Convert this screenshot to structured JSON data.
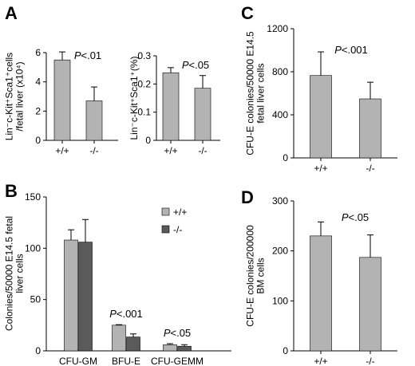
{
  "colors": {
    "wt": "#b3b3b3",
    "ko": "#5a5a5a",
    "axis": "#000000"
  },
  "panels": {
    "A": {
      "letter": "A"
    },
    "B": {
      "letter": "B"
    },
    "C": {
      "letter": "C"
    },
    "D": {
      "letter": "D"
    }
  },
  "chart_data": [
    {
      "id": "A1",
      "type": "bar",
      "categories": [
        "+/+",
        "-/-"
      ],
      "values": [
        5.5,
        2.7
      ],
      "errors": [
        0.55,
        0.95
      ],
      "ylim": [
        0,
        6
      ],
      "yticks": [
        "0",
        "2",
        "4",
        "6"
      ],
      "ylabel": [
        "Lin⁻c-Kit⁺Sca1⁺cells",
        "/fetal liver (x10⁴)"
      ],
      "annotation": {
        "prefix": "P",
        "text": "<.01"
      }
    },
    {
      "id": "A2",
      "type": "bar",
      "categories": [
        "+/+",
        "-/-"
      ],
      "values": [
        0.24,
        0.185
      ],
      "errors": [
        0.018,
        0.045
      ],
      "ylim": [
        0,
        0.3
      ],
      "yticks": [
        "0",
        "0.1",
        "0.2",
        "0.3"
      ],
      "ylabel": [
        "Lin⁻c-Kit⁺Sca1⁺(%)"
      ],
      "annotation": {
        "prefix": "P",
        "text": "<.05"
      }
    },
    {
      "id": "B",
      "type": "bar",
      "categories": [
        "CFU-GM",
        "BFU-E",
        "CFU-GEMM"
      ],
      "series": [
        {
          "name": "+/+",
          "values": [
            108,
            25,
            6
          ],
          "errors": [
            10,
            0.5,
            1
          ]
        },
        {
          "name": "-/-",
          "values": [
            106,
            13.5,
            4.5
          ],
          "errors": [
            22,
            3,
            1.5
          ]
        }
      ],
      "ylim": [
        0,
        150
      ],
      "yticks": [
        "0",
        "50",
        "100",
        "150"
      ],
      "ylabel": [
        "Colonies/50000 E14.5 fetal",
        "liver cells"
      ],
      "annotations": [
        {
          "category": "BFU-E",
          "prefix": "P",
          "text": "<.001"
        },
        {
          "category": "CFU-GEMM",
          "prefix": "P",
          "text": "<.05"
        }
      ],
      "legend_position": "top-right"
    },
    {
      "id": "C",
      "type": "bar",
      "categories": [
        "+/+",
        "-/-"
      ],
      "values": [
        765,
        548
      ],
      "errors": [
        220,
        155
      ],
      "ylim": [
        0,
        1200
      ],
      "yticks": [
        "0",
        "400",
        "800",
        "1200"
      ],
      "ylabel": [
        "CFU-E colonies/50000 E14.5",
        "fetal liver cells"
      ],
      "annotation": {
        "prefix": "P",
        "text": "<.001"
      }
    },
    {
      "id": "D",
      "type": "bar",
      "categories": [
        "+/+",
        "-/-"
      ],
      "values": [
        230,
        187
      ],
      "errors": [
        28,
        45
      ],
      "ylim": [
        0,
        300
      ],
      "yticks": [
        "0",
        "100",
        "200",
        "300"
      ],
      "ylabel": [
        "CFU-E colonies/200000",
        "BM cells"
      ],
      "annotation": {
        "prefix": "P",
        "text": "<.05"
      }
    }
  ]
}
